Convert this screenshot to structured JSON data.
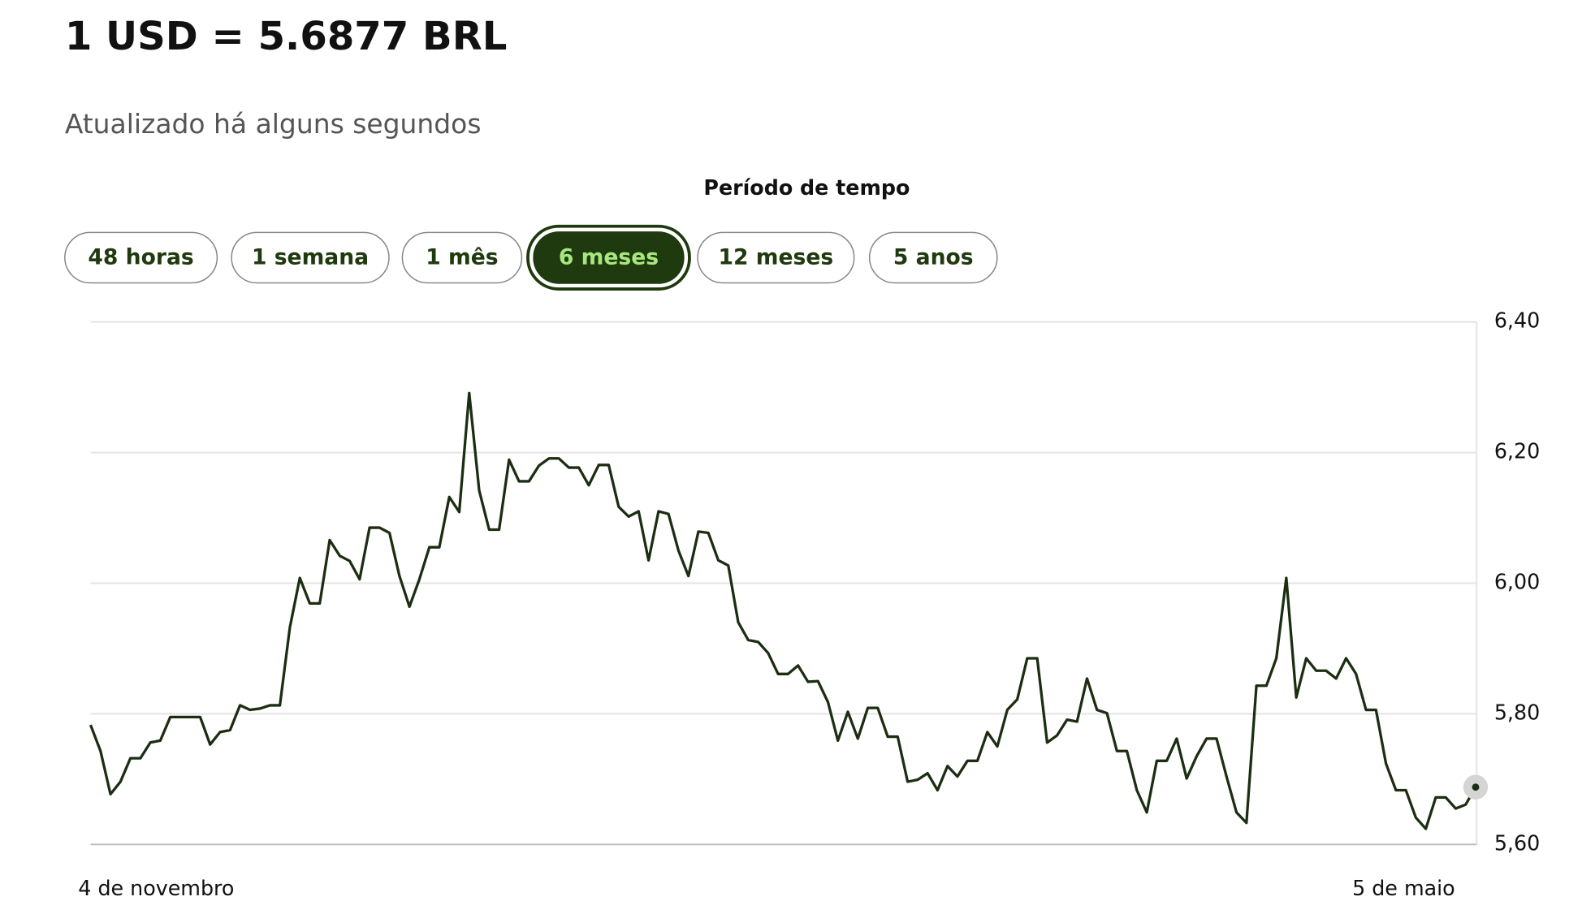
{
  "header": {
    "title": "1 USD = 5.6877 BRL",
    "subtitle": "Atualizado há alguns segundos"
  },
  "period_selector": {
    "label": "Período de tempo",
    "options": [
      {
        "label": "48 horas"
      },
      {
        "label": "1 semana"
      },
      {
        "label": "1 mês"
      },
      {
        "label": "6 meses",
        "active": true
      },
      {
        "label": "12 meses"
      },
      {
        "label": "5 anos"
      }
    ]
  },
  "chart_data": {
    "type": "line",
    "color": "#1c2e12",
    "categories": [
      "4 de novembro",
      null,
      null,
      null,
      null,
      null,
      null,
      null,
      null,
      null,
      null,
      null,
      null,
      null,
      null,
      null,
      null,
      null,
      null,
      null,
      null,
      null,
      null,
      null,
      null,
      null,
      null,
      null,
      null,
      null,
      null,
      null,
      null,
      null,
      null,
      null,
      null,
      null,
      null,
      null,
      null,
      null,
      null,
      null,
      null,
      null,
      null,
      null,
      null,
      null,
      null,
      null,
      null,
      null,
      null,
      null,
      null,
      null,
      null,
      null,
      null,
      null,
      null,
      null,
      null,
      null,
      null,
      null,
      null,
      null,
      null,
      null,
      null,
      null,
      null,
      null,
      null,
      null,
      null,
      null,
      null,
      null,
      null,
      null,
      null,
      null,
      null,
      null,
      null,
      null,
      null,
      null,
      null,
      null,
      null,
      null,
      null,
      null,
      null,
      null,
      null,
      null,
      null,
      null,
      null,
      null,
      null,
      null,
      null,
      null,
      null,
      null,
      null,
      null,
      null,
      null,
      null,
      null,
      null,
      null,
      null,
      null,
      null,
      null,
      null,
      null,
      null,
      null,
      null,
      null,
      null,
      null,
      null,
      null,
      null,
      null,
      null,
      null,
      null,
      "5 de maio"
    ],
    "values": [
      5.783,
      5.743,
      5.677,
      5.696,
      5.732,
      5.732,
      5.756,
      5.759,
      5.795,
      5.795,
      5.795,
      5.795,
      5.753,
      5.772,
      5.775,
      5.813,
      5.806,
      5.808,
      5.813,
      5.813,
      5.932,
      6.008,
      5.969,
      5.969,
      6.066,
      6.042,
      6.034,
      6.006,
      6.085,
      6.085,
      6.077,
      6.011,
      5.964,
      6.006,
      6.055,
      6.055,
      6.132,
      6.109,
      6.291,
      6.142,
      6.082,
      6.082,
      6.189,
      6.156,
      6.156,
      6.18,
      6.191,
      6.191,
      6.177,
      6.177,
      6.15,
      6.181,
      6.181,
      6.117,
      6.102,
      6.11,
      6.035,
      6.11,
      6.106,
      6.05,
      6.011,
      6.079,
      6.077,
      6.035,
      6.027,
      5.94,
      5.913,
      5.91,
      5.893,
      5.861,
      5.861,
      5.874,
      5.849,
      5.85,
      5.818,
      5.759,
      5.803,
      5.762,
      5.809,
      5.809,
      5.765,
      5.765,
      5.696,
      5.699,
      5.709,
      5.683,
      5.72,
      5.704,
      5.728,
      5.728,
      5.772,
      5.75,
      5.806,
      5.822,
      5.885,
      5.885,
      5.756,
      5.767,
      5.791,
      5.788,
      5.854,
      5.806,
      5.801,
      5.743,
      5.743,
      5.683,
      5.649,
      5.728,
      5.728,
      5.762,
      5.701,
      5.735,
      5.762,
      5.762,
      5.704,
      5.649,
      5.633,
      5.843,
      5.843,
      5.885,
      6.008,
      5.825,
      5.885,
      5.866,
      5.866,
      5.854,
      5.885,
      5.861,
      5.806,
      5.806,
      5.724,
      5.683,
      5.683,
      5.641,
      5.624,
      5.672,
      5.672,
      5.655,
      5.661,
      5.6877
    ],
    "ylim": [
      5.6,
      6.4
    ],
    "yticks": [
      {
        "value": 5.6,
        "label": "5,60"
      },
      {
        "value": 5.8,
        "label": "5,80"
      },
      {
        "value": 6.0,
        "label": "6,00"
      },
      {
        "value": 6.2,
        "label": "6,20"
      },
      {
        "value": 6.4,
        "label": "6,40"
      }
    ],
    "grid": true
  }
}
